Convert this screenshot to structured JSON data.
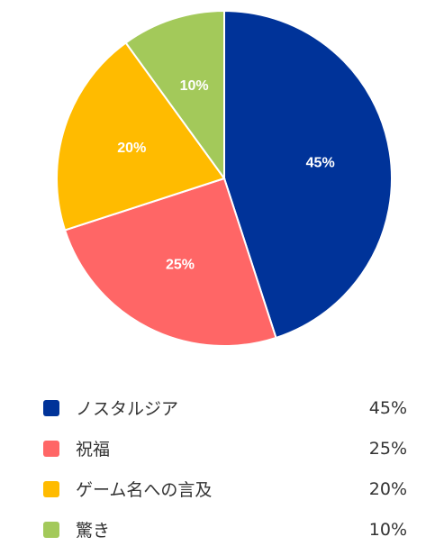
{
  "chart_data": {
    "type": "pie",
    "slices": [
      {
        "label": "ノスタルジア",
        "value": 45,
        "value_label": "45%",
        "color": "#003399"
      },
      {
        "label": "祝福",
        "value": 25,
        "value_label": "25%",
        "color": "#FF6666"
      },
      {
        "label": "ゲーム名への言及",
        "value": 20,
        "value_label": "20%",
        "color": "#FFBB00"
      },
      {
        "label": "驚き",
        "value": 10,
        "value_label": "10%",
        "color": "#A3C95A"
      }
    ],
    "legend_position": "bottom"
  }
}
